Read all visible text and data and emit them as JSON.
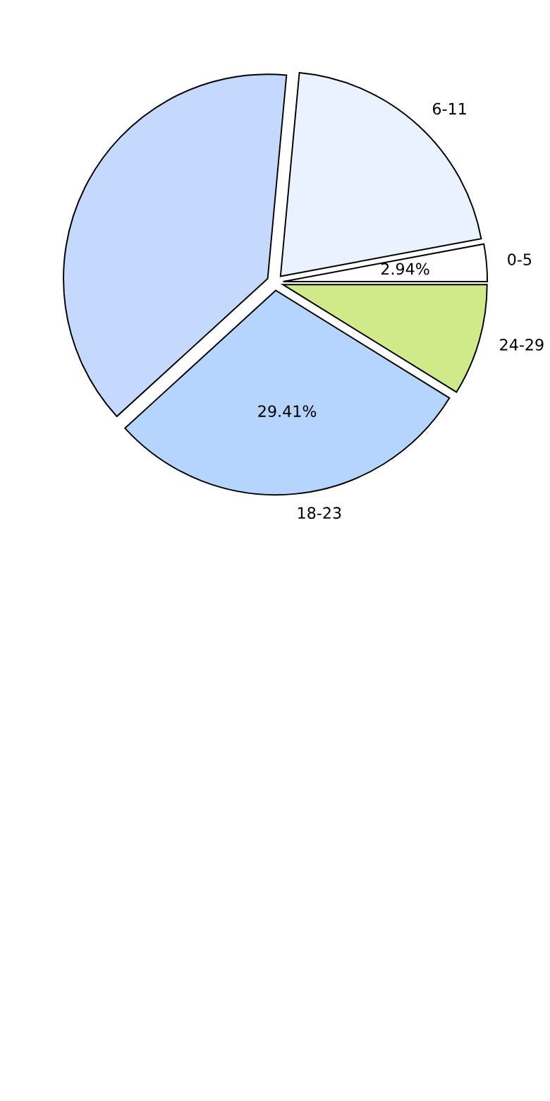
{
  "chart_data": {
    "type": "pie",
    "categories": [
      "0-5",
      "6-11",
      null,
      "18-23",
      "24-29"
    ],
    "values": [
      2.94,
      20.59,
      38.24,
      29.41,
      8.82
    ],
    "colors": [
      "#ffffff",
      "#eaf2ff",
      "#c5d9ff",
      "#b5d5ff",
      "#d0ea8a"
    ],
    "value_labels": [
      "2.94%",
      null,
      null,
      "29.41%",
      null
    ]
  }
}
